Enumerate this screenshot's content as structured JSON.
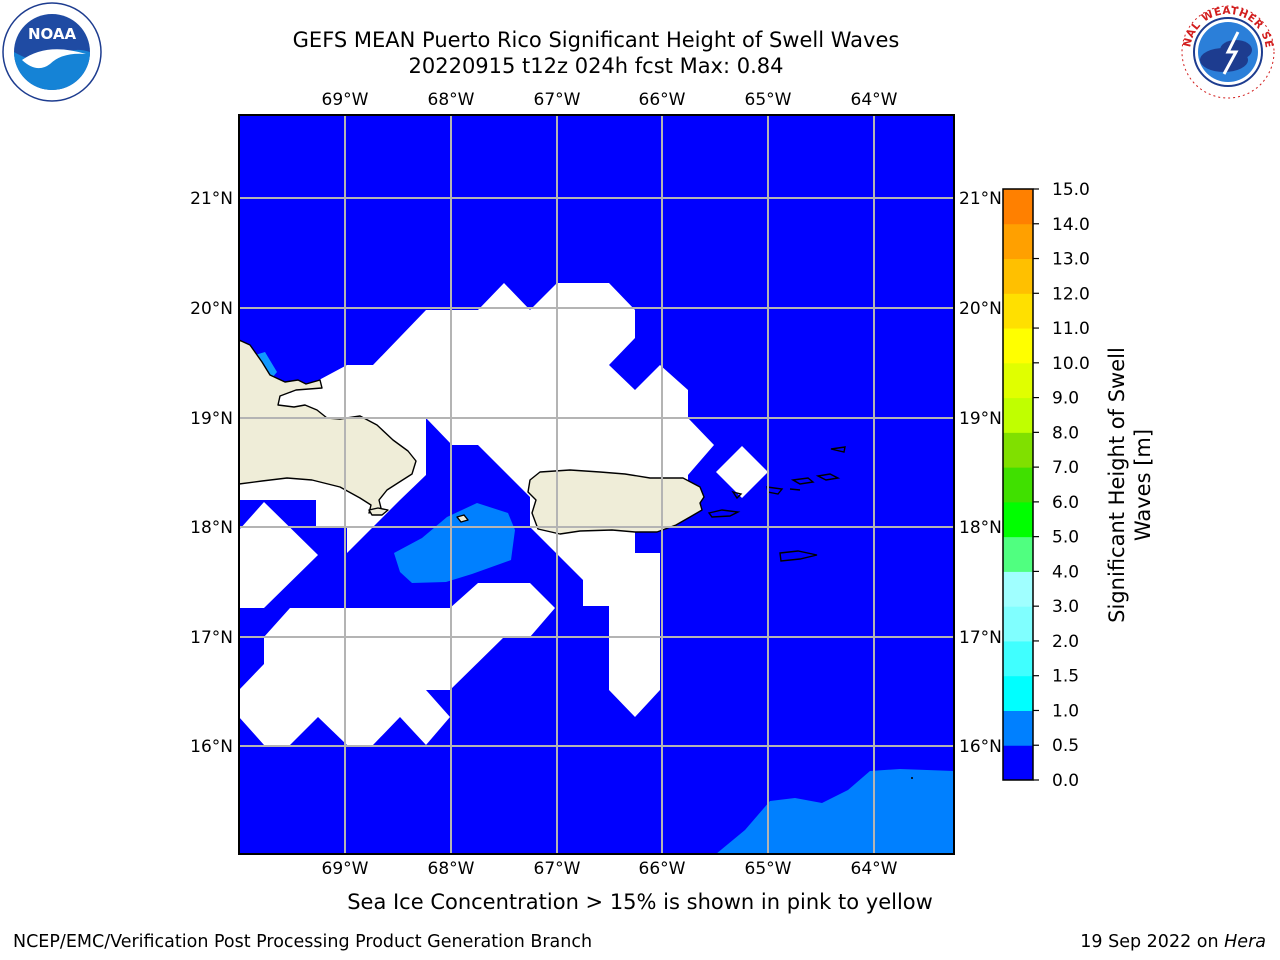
{
  "title": {
    "line1": "GEFS MEAN Puerto Rico Significant Height of Swell Waves",
    "line2": "20220915 t12z 024h fcst   Max: 0.84"
  },
  "logos": {
    "left": "noaa-logo",
    "right": "nws-logo",
    "noaa_text": "NOAA",
    "nws_text": "NATIONAL WEATHER SERVICE"
  },
  "map": {
    "lon_ticks": [
      "69°W",
      "68°W",
      "67°W",
      "66°W",
      "65°W",
      "64°W"
    ],
    "lat_ticks": [
      "21°N",
      "20°N",
      "19°N",
      "18°N",
      "17°N",
      "16°N"
    ],
    "ocean_color": "#0000ff",
    "land_color": "#efedd8",
    "swell_05_1_color": "#0080ff",
    "missing_color": "#ffffff",
    "grid_color": "#b4b4b4"
  },
  "colorbar": {
    "label_line1": "Significant Height of Swell",
    "label_line2": "Waves [m]",
    "ticks": [
      "15.0",
      "14.0",
      "13.0",
      "12.0",
      "11.0",
      "10.0",
      "9.0",
      "8.0",
      "7.0",
      "6.0",
      "5.0",
      "4.0",
      "3.0",
      "2.0",
      "1.5",
      "1.0",
      "0.5",
      "0.0"
    ],
    "colors": [
      "#0000ff",
      "#0080ff",
      "#00ffff",
      "#40ffff",
      "#80ffff",
      "#a0ffff",
      "#50ff80",
      "#00ff00",
      "#40e000",
      "#80e000",
      "#c0ff00",
      "#e0ff00",
      "#ffff00",
      "#ffe000",
      "#ffc000",
      "#ffa000",
      "#ff8000",
      "#ff5000",
      "#ff2000",
      "#ff0000"
    ]
  },
  "chart_data": {
    "type": "heatmap",
    "variable": "Significant Height of Swell Waves",
    "units": "m",
    "max_value": 0.84,
    "lon_range": [
      -69.95,
      -63.45
    ],
    "lat_range": [
      15.0,
      21.75
    ],
    "levels": [
      0.0,
      0.5,
      1.0,
      1.5,
      2.0,
      3.0,
      4.0,
      5.0,
      6.0,
      7.0,
      8.0,
      9.0,
      10.0,
      11.0,
      12.0,
      13.0,
      14.0,
      15.0
    ]
  },
  "notes": {
    "sea_ice": "Sea Ice Concentration > 15% is shown in pink to yellow"
  },
  "footer": {
    "left": "NCEP/EMC/Verification Post Processing Product Generation Branch",
    "right_prefix": "19 Sep 2022 on ",
    "right_machine": "Hera"
  }
}
